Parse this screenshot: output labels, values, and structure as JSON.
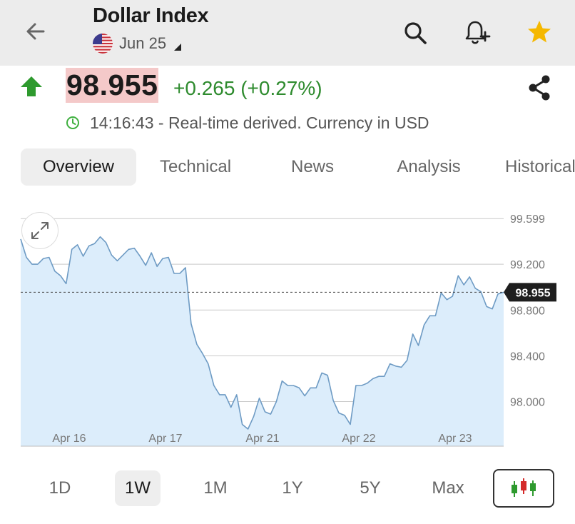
{
  "header": {
    "title": "Dollar Index",
    "expiry": "Jun 25",
    "back_icon": "arrow-left-icon",
    "search_icon": "search-icon",
    "alert_icon": "bell-plus-icon",
    "watchlist_icon": "star-icon"
  },
  "quote": {
    "price": "98.955",
    "change": "+0.265 (+0.27%)",
    "direction": "up",
    "time_text": "14:16:43 - Real-time derived. Currency in USD",
    "colors": {
      "up": "#2e8b2e",
      "price_highlight": "#f4c9c9",
      "star": "#f5b800"
    }
  },
  "tabs": [
    {
      "label": "Overview",
      "active": true
    },
    {
      "label": "Technical",
      "active": false
    },
    {
      "label": "News",
      "active": false
    },
    {
      "label": "Analysis",
      "active": false
    },
    {
      "label": "Historical",
      "active": false
    }
  ],
  "chart_data": {
    "type": "area",
    "y_ticks": [
      "99.599",
      "99.200",
      "98.800",
      "98.400",
      "98.000"
    ],
    "y_tick_values": [
      99.599,
      99.2,
      98.8,
      98.4,
      98.0
    ],
    "x_ticks": [
      "Apr 16",
      "Apr 17",
      "Apr 21",
      "Apr 22",
      "Apr 23"
    ],
    "current_value": 98.955,
    "current_label": "98.955",
    "ylim": [
      97.61,
      99.7
    ],
    "line_color": "#6e9bc4",
    "fill_color": "#dcedfb",
    "values": [
      99.42,
      99.26,
      99.2,
      99.2,
      99.25,
      99.26,
      99.14,
      99.1,
      99.03,
      99.33,
      99.37,
      99.27,
      99.36,
      99.38,
      99.44,
      99.39,
      99.28,
      99.23,
      99.28,
      99.33,
      99.34,
      99.27,
      99.19,
      99.3,
      99.18,
      99.25,
      99.26,
      99.12,
      99.12,
      99.17,
      98.68,
      98.5,
      98.42,
      98.33,
      98.14,
      98.06,
      98.06,
      97.95,
      98.06,
      97.8,
      97.76,
      97.87,
      98.03,
      97.91,
      97.89,
      98.0,
      98.18,
      98.14,
      98.14,
      98.12,
      98.05,
      98.12,
      98.12,
      98.25,
      98.23,
      98.01,
      97.9,
      97.88,
      97.8,
      98.14,
      98.14,
      98.16,
      98.2,
      98.22,
      98.22,
      98.33,
      98.31,
      98.3,
      98.36,
      98.59,
      98.49,
      98.67,
      98.75,
      98.75,
      98.95,
      98.89,
      98.92,
      99.1,
      99.02,
      99.09,
      98.99,
      98.96,
      98.83,
      98.81,
      98.94,
      98.955
    ]
  },
  "ranges": [
    {
      "label": "1D",
      "active": false
    },
    {
      "label": "1W",
      "active": true
    },
    {
      "label": "1M",
      "active": false
    },
    {
      "label": "1Y",
      "active": false
    },
    {
      "label": "5Y",
      "active": false
    },
    {
      "label": "Max",
      "active": false
    }
  ],
  "chart_type_icon": "candlestick-icon",
  "expand_icon": "expand-icon"
}
